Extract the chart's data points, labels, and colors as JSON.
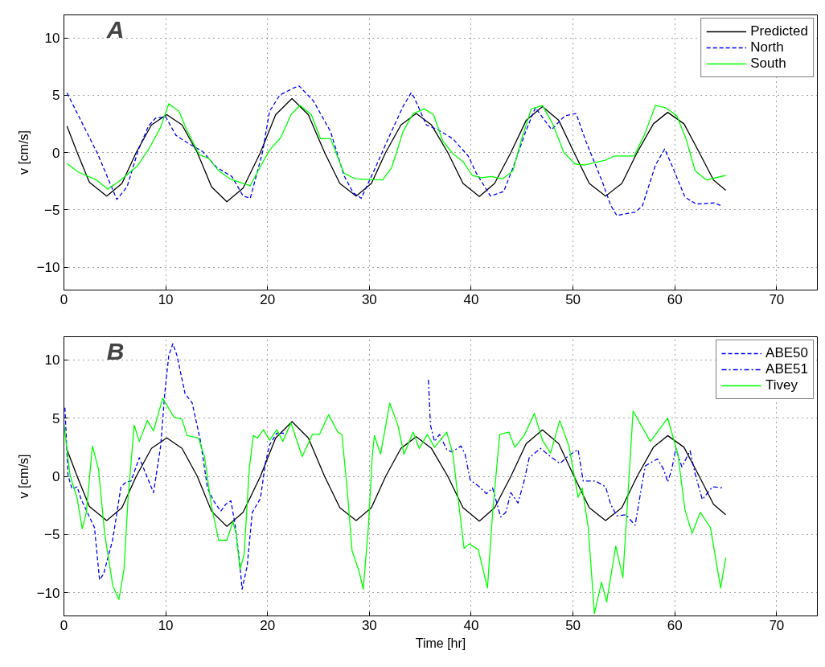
{
  "chart_data": [
    {
      "type": "line",
      "annotations": [
        "A"
      ],
      "ylabel": "v [cm/s]",
      "xlim": [
        0,
        74
      ],
      "ylim": [
        -12,
        12
      ],
      "xticks": [
        0,
        10,
        20,
        30,
        40,
        50,
        60,
        70
      ],
      "yticks": [
        -10,
        -5,
        0,
        5,
        10
      ],
      "grid": true,
      "legend": "top right",
      "series": [
        {
          "name": "Predicted",
          "color": "#000000",
          "line_style": "solid",
          "x": [
            0.3,
            1.3,
            2.5,
            4.2,
            5.7,
            7.1,
            8.6,
            10.1,
            11.6,
            13.1,
            14.5,
            16.0,
            17.6,
            19.3,
            20.8,
            22.4,
            24.0,
            25.6,
            27.1,
            28.7,
            30.2,
            31.6,
            33.1,
            34.6,
            36.1,
            37.7,
            39.2,
            40.8,
            42.3,
            43.9,
            45.4,
            47.0,
            48.6,
            50.1,
            51.6,
            53.2,
            54.8,
            56.3,
            57.9,
            59.3,
            60.9,
            62.4,
            63.8,
            65.0
          ],
          "values": [
            2.3,
            0,
            -2.6,
            -3.8,
            -2.7,
            0,
            2.4,
            3.3,
            2.4,
            0,
            -3.0,
            -4.3,
            -3.1,
            0,
            3.3,
            4.7,
            3.3,
            0,
            -2.7,
            -3.8,
            -2.7,
            0,
            2.4,
            3.4,
            2.4,
            0,
            -2.7,
            -3.85,
            -2.7,
            0,
            2.8,
            4.0,
            2.8,
            0,
            -2.7,
            -3.8,
            -2.7,
            0,
            2.5,
            3.5,
            2.5,
            0,
            -2.4,
            -3.3
          ]
        },
        {
          "name": "North",
          "color": "#0000ff",
          "line_style": "dashed",
          "x": [
            0.3,
            3.3,
            5.2,
            6.2,
            7.3,
            8.3,
            9.0,
            10.0,
            11.0,
            12.2,
            13.6,
            15.0,
            16.5,
            17.6,
            18.3,
            19.5,
            20.2,
            21.2,
            22.5,
            23.1,
            24.5,
            26.2,
            27.5,
            28.4,
            29.2,
            30.5,
            32.0,
            33.3,
            34.1,
            34.4,
            35.6,
            36.7,
            38.2,
            39.7,
            40.5,
            41.9,
            43.2,
            44.2,
            45.3,
            46.3,
            47.9,
            49.2,
            50.3,
            51.3,
            52.9,
            53.7,
            54.3,
            56.1,
            56.8,
            58.1,
            59.0,
            59.7,
            61.0,
            62.1,
            63.9,
            64.7
          ],
          "values": [
            5.2,
            -0.1,
            -4.1,
            -3.0,
            0.2,
            2.3,
            3.0,
            3.1,
            1.5,
            0.8,
            0.1,
            -1.3,
            -2.1,
            -3.8,
            -4.0,
            0,
            3.6,
            5.0,
            5.6,
            5.8,
            4.5,
            1.8,
            -2.0,
            -3.5,
            -4.0,
            -1.5,
            1.5,
            4.0,
            5.2,
            4.8,
            2.4,
            2.0,
            1.2,
            -0.3,
            -1.8,
            -3.8,
            -3.4,
            -1.1,
            1.7,
            3.9,
            2.0,
            3.2,
            3.4,
            0.9,
            -2.6,
            -4.6,
            -5.5,
            -5.2,
            -4.7,
            -1.1,
            0.3,
            -1.1,
            -3.9,
            -4.5,
            -4.4,
            -4.7
          ]
        },
        {
          "name": "South",
          "color": "#00ff00",
          "line_style": "solid",
          "x": [
            0.3,
            1.4,
            3.2,
            4.3,
            5.3,
            7.2,
            8.4,
            9.5,
            10.3,
            11.3,
            12.1,
            13.3,
            14.2,
            15.2,
            16.3,
            18.3,
            19.0,
            20.2,
            21.3,
            22.3,
            23.2,
            24.3,
            25.2,
            26.2,
            27.5,
            28.6,
            31.3,
            32.2,
            33.3,
            34.3,
            35.4,
            36.3,
            37.2,
            38.2,
            39.2,
            40.1,
            41.0,
            42.0,
            43.1,
            44.1,
            44.9,
            45.9,
            47.0,
            48.0,
            49.1,
            50.2,
            51.1,
            53.1,
            54.1,
            56.0,
            57.0,
            58.1,
            59.1,
            60.2,
            61.1,
            62.0,
            63.1,
            65.0
          ],
          "values": [
            -0.96,
            -1.7,
            -2.4,
            -3.2,
            -2.6,
            -1.2,
            0.4,
            2.2,
            4.25,
            3.6,
            1.9,
            -0.2,
            -0.5,
            -1.6,
            -2.3,
            -2.9,
            -1.7,
            0.2,
            1.3,
            3.3,
            4.1,
            3.3,
            1.2,
            1.2,
            -1.8,
            -2.3,
            -2.4,
            -1.3,
            1.8,
            3.4,
            3.8,
            3.3,
            1.0,
            -0.1,
            -0.8,
            -2.0,
            -2.2,
            -2.1,
            -2.3,
            -1.6,
            1.0,
            3.8,
            4.1,
            2.5,
            0.0,
            -1.0,
            -1.1,
            -0.7,
            -0.3,
            -0.3,
            1.5,
            4.1,
            3.9,
            3.2,
            1.2,
            -1.6,
            -2.4,
            -2.0
          ]
        }
      ]
    },
    {
      "type": "line",
      "annotations": [
        "B"
      ],
      "xlabel": "Time [hr]",
      "ylabel": "v [cm/s]",
      "xlim": [
        0,
        74
      ],
      "ylim": [
        -12,
        12
      ],
      "xticks": [
        0,
        10,
        20,
        30,
        40,
        50,
        60,
        70
      ],
      "yticks": [
        -10,
        -5,
        0,
        5,
        10
      ],
      "grid": true,
      "legend": "top right",
      "series": [
        {
          "color": "#000000",
          "line_style": "solid",
          "x": [
            0.3,
            1.3,
            2.5,
            4.2,
            5.7,
            7.1,
            8.6,
            10.1,
            11.6,
            13.1,
            14.5,
            16.0,
            17.6,
            19.3,
            20.8,
            22.4,
            24.0,
            25.6,
            27.1,
            28.7,
            30.2,
            31.6,
            33.1,
            34.6,
            36.1,
            37.7,
            39.2,
            40.8,
            42.3,
            43.9,
            45.4,
            47.0,
            48.6,
            50.1,
            51.6,
            53.2,
            54.8,
            56.3,
            57.9,
            59.3,
            60.9,
            62.4,
            63.8,
            65.0
          ],
          "values": [
            2.3,
            0,
            -2.6,
            -3.8,
            -2.7,
            0,
            2.4,
            3.3,
            2.4,
            0,
            -3.0,
            -4.3,
            -3.1,
            0,
            3.3,
            4.7,
            3.3,
            0,
            -2.7,
            -3.8,
            -2.7,
            0,
            2.4,
            3.4,
            2.4,
            0,
            -2.7,
            -3.85,
            -2.7,
            0,
            2.8,
            4.0,
            2.8,
            0,
            -2.7,
            -3.8,
            -2.7,
            0,
            2.5,
            3.5,
            2.5,
            0,
            -2.4,
            -3.3
          ]
        },
        {
          "name": "ABE50",
          "color": "#0000ff",
          "line_style": "dashed",
          "x": [
            0.1,
            0.4,
            0.8,
            1.3,
            1.7,
            3.0,
            3.5,
            3.9,
            4.8,
            5.6,
            6.1,
            6.6,
            7.4,
            8.1,
            8.8,
            9.5,
            9.9,
            10.3,
            10.7,
            11.1,
            11.9,
            12.6,
            13.4,
            14.1,
            14.7,
            15.4,
            15.9,
            16.4,
            16.8,
            17.2,
            17.5,
            18.0,
            18.5,
            19.3,
            19.8,
            20.2,
            20.9,
            21.6
          ],
          "values": [
            5.9,
            0.1,
            -1.1,
            -0.9,
            -2.0,
            -4.4,
            -8.9,
            -8.4,
            -5.4,
            -0.9,
            -0.5,
            -0.4,
            1.6,
            0.1,
            -1.4,
            2.6,
            7.1,
            10.4,
            11.4,
            10.4,
            7.1,
            6.3,
            3.1,
            -1.0,
            -2.1,
            -3.0,
            -2.4,
            -2.1,
            -4.1,
            -6.9,
            -9.7,
            -7.7,
            -3.1,
            -1.9,
            1.2,
            2.7,
            3.7,
            3.7
          ]
        },
        {
          "name": "ABE51",
          "color": "#0000ff",
          "line_style": "dashdot",
          "x": [
            35.8,
            36.0,
            36.4,
            36.9,
            37.6,
            38.1,
            39.0,
            39.4,
            39.9,
            40.8,
            41.5,
            42.1,
            42.9,
            43.4,
            43.9,
            44.6,
            45.2,
            45.7,
            46.8,
            47.5,
            48.7,
            49.6,
            50.5,
            51.0,
            52.2,
            53.2,
            53.7,
            54.3,
            55.2,
            56.1,
            56.6,
            57.1,
            58.3,
            58.9,
            59.3,
            59.7,
            60.1,
            60.7,
            61.5,
            62.0,
            62.7,
            63.7,
            64.8
          ],
          "values": [
            8.3,
            4.4,
            3.0,
            3.6,
            2.3,
            2.1,
            2.6,
            1.9,
            -0.3,
            -0.9,
            -1.5,
            -1.0,
            -3.5,
            -3.1,
            -1.4,
            -2.3,
            -0.4,
            1.6,
            2.4,
            1.9,
            1.1,
            1.8,
            2.3,
            -0.4,
            -0.4,
            -0.9,
            -2.4,
            -3.4,
            -3.3,
            -4.2,
            -1.6,
            0.9,
            1.5,
            0.6,
            -0.5,
            0.6,
            2.4,
            0.8,
            2.2,
            0.2,
            -2.0,
            -0.9,
            -1.0
          ]
        },
        {
          "name": "Tivey",
          "color": "#00ff00",
          "line_style": "solid",
          "x": [
            0.0,
            0.6,
            1.3,
            1.8,
            2.2,
            2.8,
            3.4,
            4.0,
            4.8,
            5.4,
            5.9,
            6.3,
            6.9,
            7.4,
            8.2,
            8.8,
            9.7,
            10.8,
            11.6,
            12.1,
            13.2,
            13.8,
            14.5,
            15.2,
            16.0,
            16.6,
            16.9,
            17.3,
            17.7,
            18.2,
            18.6,
            19.0,
            19.6,
            20.2,
            20.9,
            21.5,
            22.3,
            23.4,
            24.4,
            25.1,
            26.0,
            26.9,
            27.3,
            27.8,
            28.3,
            29.0,
            29.4,
            29.9,
            30.3,
            30.5,
            31.1,
            32.0,
            32.8,
            33.4,
            34.3,
            34.9,
            35.7,
            36.4,
            37.6,
            38.2,
            39.3,
            39.8,
            40.7,
            41.6,
            42.1,
            42.8,
            43.7,
            44.3,
            45.2,
            46.2,
            47.0,
            47.8,
            48.7,
            49.6,
            50.5,
            50.9,
            51.5,
            52.1,
            52.8,
            53.3,
            54.2,
            54.9,
            55.9,
            57.6,
            59.3,
            60.3,
            61.0,
            61.7,
            62.5,
            63.5,
            64.5,
            65.0
          ],
          "values": [
            4.5,
            0.1,
            -1.9,
            -4.5,
            -3.1,
            2.6,
            0.6,
            -4.9,
            -9.4,
            -10.6,
            -8.0,
            -1.9,
            4.4,
            3.0,
            4.8,
            3.9,
            6.7,
            5.1,
            4.9,
            3.5,
            3.3,
            1.7,
            -2.6,
            -5.5,
            -5.5,
            -3.9,
            -4.9,
            -8.0,
            -6.7,
            0.6,
            3.5,
            3.3,
            4.0,
            3.1,
            4.0,
            3.0,
            4.6,
            1.7,
            3.6,
            3.6,
            5.3,
            3.8,
            3.6,
            -0.9,
            -6.4,
            -8.2,
            -9.7,
            -4.4,
            1.9,
            3.5,
            1.9,
            6.3,
            4.4,
            1.9,
            3.8,
            2.4,
            3.6,
            2.5,
            3.8,
            1.9,
            -6.2,
            -5.8,
            -6.3,
            -9.6,
            -3.2,
            3.6,
            3.8,
            2.5,
            3.5,
            5.4,
            3.1,
            2.0,
            4.8,
            2.6,
            -1.8,
            -1.0,
            -4.4,
            -11.8,
            -9.1,
            -10.8,
            -6.0,
            -8.7,
            5.6,
            3.0,
            5.0,
            1.9,
            -2.9,
            -4.9,
            -3.1,
            -4.4,
            -9.6,
            -7.0
          ]
        }
      ]
    }
  ]
}
